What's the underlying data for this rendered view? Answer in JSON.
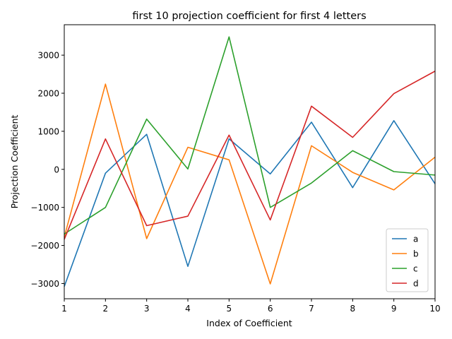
{
  "chart_data": {
    "type": "line",
    "title": "first 10 projection coefficient for first 4 letters",
    "xlabel": "Index of Coefficient",
    "ylabel": "Projection Coefficient",
    "x": [
      1,
      2,
      3,
      4,
      5,
      6,
      7,
      8,
      9,
      10
    ],
    "xlim": [
      1,
      10
    ],
    "ylim": [
      -3400,
      3800
    ],
    "xticks": [
      "1",
      "2",
      "3",
      "4",
      "5",
      "6",
      "7",
      "8",
      "9",
      "10"
    ],
    "yticks": [
      -3000,
      -2000,
      -1000,
      0,
      1000,
      2000,
      3000
    ],
    "ytick_labels": [
      "−3000",
      "−2000",
      "−1000",
      "0",
      "1000",
      "2000",
      "3000"
    ],
    "grid": false,
    "legend_position": "lower right",
    "series": [
      {
        "name": "a",
        "color": "#1f77b4",
        "values": [
          -3080,
          -100,
          920,
          -2550,
          800,
          -120,
          1240,
          -480,
          1280,
          -380
        ]
      },
      {
        "name": "b",
        "color": "#ff7f0e",
        "values": [
          -1780,
          2240,
          -1820,
          580,
          250,
          -3010,
          620,
          -80,
          -540,
          320
        ]
      },
      {
        "name": "c",
        "color": "#2ca02c",
        "values": [
          -1700,
          -1000,
          1320,
          10,
          3480,
          -1000,
          -360,
          490,
          -60,
          -150
        ]
      },
      {
        "name": "d",
        "color": "#d62728",
        "values": [
          -1840,
          800,
          -1480,
          -1230,
          900,
          -1330,
          1660,
          840,
          1990,
          2580
        ]
      }
    ]
  }
}
